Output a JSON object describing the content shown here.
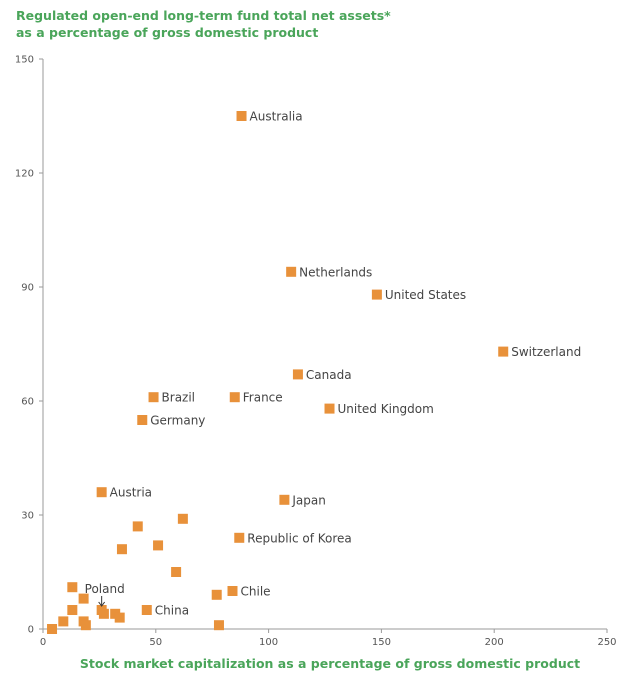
{
  "chart_data": {
    "type": "scatter",
    "title": "",
    "ylabel_lines": [
      "Regulated open-end long-term fund total net assets*",
      "as a percentage of gross domestic product"
    ],
    "xlabel": "Stock market capitalization as a percentage of gross domestic product",
    "xlim": [
      0,
      250
    ],
    "ylim": [
      0,
      150
    ],
    "xticks": [
      0,
      50,
      100,
      150,
      200,
      250
    ],
    "yticks": [
      0,
      30,
      60,
      90,
      120,
      150
    ],
    "marker_color": "#e8913a",
    "series": [
      {
        "name": "countries",
        "points": [
          {
            "x": 88,
            "y": 135,
            "label": "Australia"
          },
          {
            "x": 110,
            "y": 94,
            "label": "Netherlands"
          },
          {
            "x": 148,
            "y": 88,
            "label": "United States"
          },
          {
            "x": 204,
            "y": 73,
            "label": "Switzerland"
          },
          {
            "x": 113,
            "y": 67,
            "label": "Canada"
          },
          {
            "x": 49,
            "y": 61,
            "label": "Brazil"
          },
          {
            "x": 85,
            "y": 61,
            "label": "France"
          },
          {
            "x": 127,
            "y": 58,
            "label": "United Kingdom"
          },
          {
            "x": 44,
            "y": 55,
            "label": "Germany"
          },
          {
            "x": 26,
            "y": 36,
            "label": "Austria"
          },
          {
            "x": 107,
            "y": 34,
            "label": "Japan"
          },
          {
            "x": 87,
            "y": 24,
            "label": "Republic of Korea"
          },
          {
            "x": 84,
            "y": 10,
            "label": "Chile"
          },
          {
            "x": 46,
            "y": 5,
            "label": "China"
          },
          {
            "x": 26,
            "y": 5,
            "label": "Poland"
          },
          {
            "x": 62,
            "y": 29,
            "label": ""
          },
          {
            "x": 42,
            "y": 27,
            "label": ""
          },
          {
            "x": 51,
            "y": 22,
            "label": ""
          },
          {
            "x": 35,
            "y": 21,
            "label": ""
          },
          {
            "x": 59,
            "y": 15,
            "label": ""
          },
          {
            "x": 13,
            "y": 11,
            "label": ""
          },
          {
            "x": 18,
            "y": 8,
            "label": ""
          },
          {
            "x": 77,
            "y": 9,
            "label": ""
          },
          {
            "x": 13,
            "y": 5,
            "label": ""
          },
          {
            "x": 27,
            "y": 4,
            "label": ""
          },
          {
            "x": 32,
            "y": 4,
            "label": ""
          },
          {
            "x": 34,
            "y": 3,
            "label": ""
          },
          {
            "x": 9,
            "y": 2,
            "label": ""
          },
          {
            "x": 18,
            "y": 2,
            "label": ""
          },
          {
            "x": 19,
            "y": 1,
            "label": ""
          },
          {
            "x": 78,
            "y": 1,
            "label": ""
          },
          {
            "x": 4,
            "y": 0,
            "label": ""
          }
        ]
      }
    ]
  }
}
